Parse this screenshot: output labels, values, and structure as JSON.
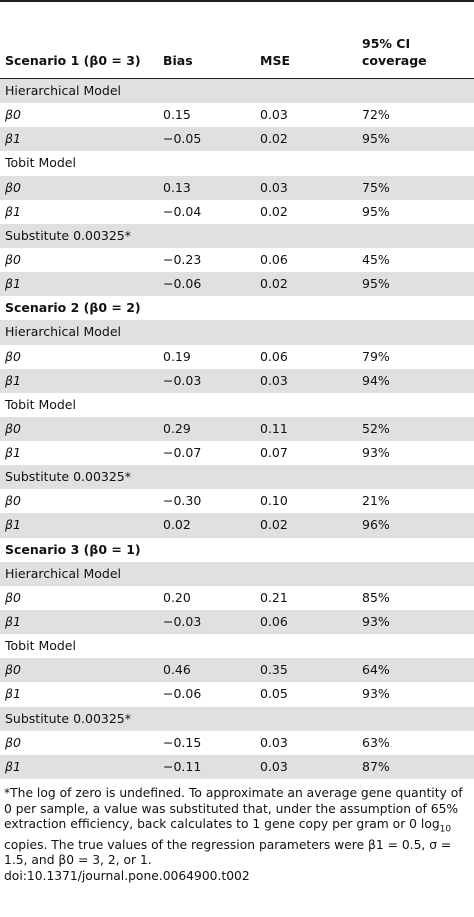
{
  "table": {
    "header": [
      "Scenario 1 (β0 = 3)",
      "Bias",
      "MSE",
      "95% CI coverage"
    ],
    "rows": [
      [
        "Hierarchical Model"
      ],
      [
        "β0",
        "0.15",
        "0.03",
        "72%"
      ],
      [
        "β1",
        "−0.05",
        "0.02",
        "95%"
      ],
      [
        "Tobit Model"
      ],
      [
        "β0",
        "0.13",
        "0.03",
        "75%"
      ],
      [
        "β1",
        "−0.04",
        "0.02",
        "95%"
      ],
      [
        "Substitute 0.00325*"
      ],
      [
        "β0",
        "−0.23",
        "0.06",
        "45%"
      ],
      [
        "β1",
        "−0.06",
        "0.02",
        "95%"
      ],
      [
        "Scenario 2 (β0 = 2)"
      ],
      [
        "Hierarchical Model"
      ],
      [
        "β0",
        "0.19",
        "0.06",
        "79%"
      ],
      [
        "β1",
        "−0.03",
        "0.03",
        "94%"
      ],
      [
        "Tobit Model"
      ],
      [
        "β0",
        "0.29",
        "0.11",
        "52%"
      ],
      [
        "β1",
        "−0.07",
        "0.07",
        "93%"
      ],
      [
        "Substitute 0.00325*"
      ],
      [
        "β0",
        "−0.30",
        "0.10",
        "21%"
      ],
      [
        "β1",
        "0.02",
        "0.02",
        "96%"
      ],
      [
        "Scenario 3 (β0 = 1)"
      ],
      [
        "Hierarchical Model"
      ],
      [
        "β0",
        "0.20",
        "0.21",
        "85%"
      ],
      [
        "β1",
        "−0.03",
        "0.06",
        "93%"
      ],
      [
        "Tobit Model"
      ],
      [
        "β0",
        "0.46",
        "0.35",
        "64%"
      ],
      [
        "β1",
        "−0.06",
        "0.05",
        "93%"
      ],
      [
        "Substitute 0.00325*"
      ],
      [
        "β0",
        "−0.15",
        "0.03",
        "63%"
      ],
      [
        "β1",
        "−0.11",
        "0.03",
        "87%"
      ]
    ]
  },
  "footnote": [
    "*The log of zero is undefined. To approximate an average gene quantity of 0 per sample, a value was substituted that, under the assumption of 65% extraction efficiency, back calculates to 1 gene copy per gram or 0 log",
    "10",
    " copies. The true values of the regression parameters were β1 = 0.5, σ = 1.5, and β0 = 3, 2, or 1."
  ],
  "doi": "doi:10.1371/journal.pone.0064900.t002"
}
